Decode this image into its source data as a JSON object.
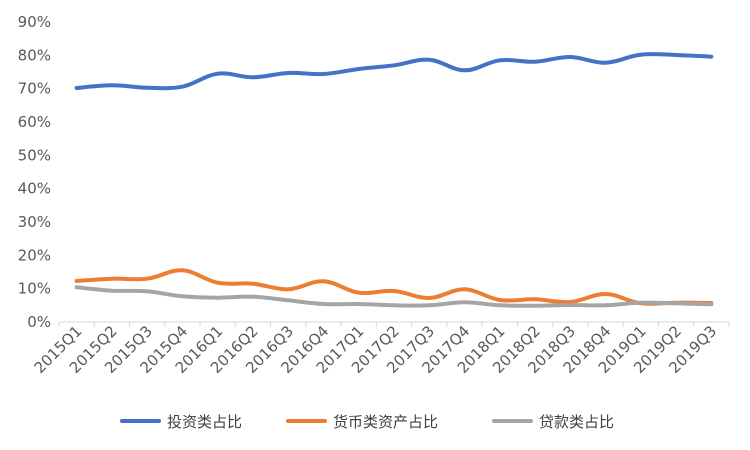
{
  "chart_data": {
    "type": "line",
    "title": "",
    "xlabel": "",
    "ylabel": "",
    "ylim": [
      0,
      90
    ],
    "yticks": [
      "0%",
      "10%",
      "20%",
      "30%",
      "40%",
      "50%",
      "60%",
      "70%",
      "80%",
      "90%"
    ],
    "grid": false,
    "legend_position": "bottom",
    "categories": [
      "2015Q1",
      "2015Q2",
      "2015Q3",
      "2015Q4",
      "2016Q1",
      "2016Q2",
      "2016Q3",
      "2016Q4",
      "2017Q1",
      "2017Q2",
      "2017Q3",
      "2017Q4",
      "2018Q1",
      "2018Q2",
      "2018Q3",
      "2018Q4",
      "2019Q1",
      "2019Q2",
      "2019Q3"
    ],
    "series": [
      {
        "name": "投资类占比",
        "color": "#4472C4",
        "values": [
          70.2,
          71.0,
          70.3,
          70.6,
          74.5,
          73.4,
          74.7,
          74.4,
          75.9,
          77.0,
          78.7,
          75.5,
          78.5,
          78.1,
          79.5,
          77.8,
          80.2,
          80.1,
          79.6
        ]
      },
      {
        "name": "货币类资产占比",
        "color": "#ED7D31",
        "values": [
          12.3,
          13.0,
          13.0,
          15.5,
          11.8,
          11.5,
          9.8,
          12.2,
          8.8,
          9.3,
          7.2,
          9.8,
          6.6,
          6.8,
          6.0,
          8.4,
          5.6,
          5.8,
          5.7
        ]
      },
      {
        "name": "贷款类占比",
        "color": "#A5A5A5",
        "values": [
          10.4,
          9.4,
          9.2,
          7.7,
          7.3,
          7.6,
          6.5,
          5.4,
          5.4,
          5.0,
          5.0,
          5.9,
          5.0,
          4.9,
          5.1,
          5.0,
          5.8,
          5.6,
          5.3
        ]
      }
    ]
  }
}
